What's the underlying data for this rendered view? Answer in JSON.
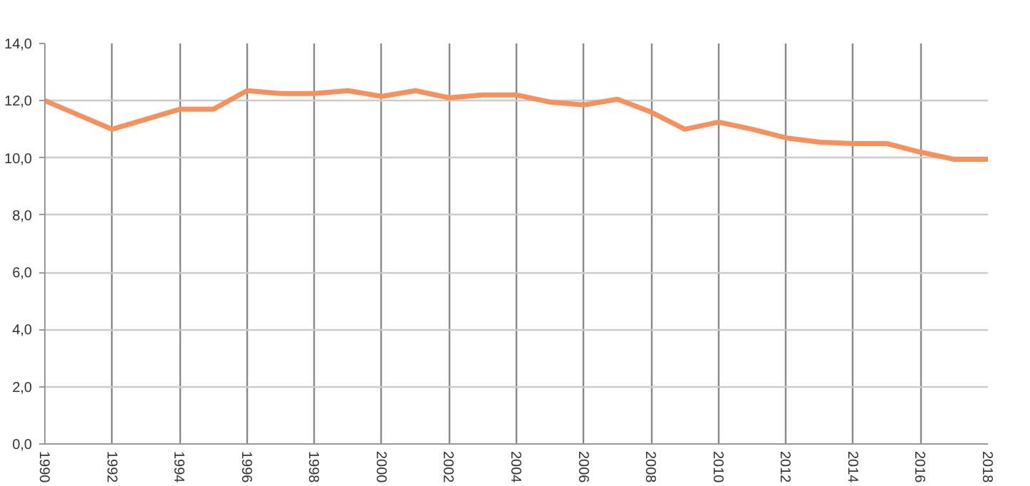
{
  "chart_data": {
    "type": "line",
    "x": [
      1990,
      1991,
      1992,
      1993,
      1994,
      1995,
      1996,
      1997,
      1998,
      1999,
      2000,
      2001,
      2002,
      2003,
      2004,
      2005,
      2006,
      2007,
      2008,
      2009,
      2010,
      2011,
      2012,
      2013,
      2014,
      2015,
      2016,
      2017,
      2018
    ],
    "series": [
      {
        "color": "#f4915e",
        "values": [
          12.0,
          11.5,
          11.0,
          11.35,
          11.7,
          11.7,
          12.35,
          12.25,
          12.25,
          12.35,
          12.15,
          12.35,
          12.1,
          12.2,
          12.2,
          11.95,
          11.85,
          12.05,
          11.6,
          11.0,
          11.25,
          11.0,
          10.7,
          10.55,
          10.5,
          10.5,
          10.2,
          9.95,
          9.95
        ]
      }
    ],
    "xlim": [
      1990,
      2018
    ],
    "xticks": [
      1990,
      1992,
      1994,
      1996,
      1998,
      2000,
      2002,
      2004,
      2006,
      2008,
      2010,
      2012,
      2014,
      2016,
      2018
    ],
    "ylim": [
      0,
      14
    ],
    "yticks": [
      {
        "value": 0,
        "label": "0,0"
      },
      {
        "value": 2,
        "label": "2,0"
      },
      {
        "value": 4,
        "label": "4,0"
      },
      {
        "value": 6,
        "label": "6,0"
      },
      {
        "value": 8,
        "label": "8,0"
      },
      {
        "value": 10,
        "label": "10,0"
      },
      {
        "value": 12,
        "label": "12,0"
      },
      {
        "value": 14,
        "label": "14,0"
      }
    ],
    "grid": true,
    "marker": "none",
    "line_style": "solid"
  }
}
